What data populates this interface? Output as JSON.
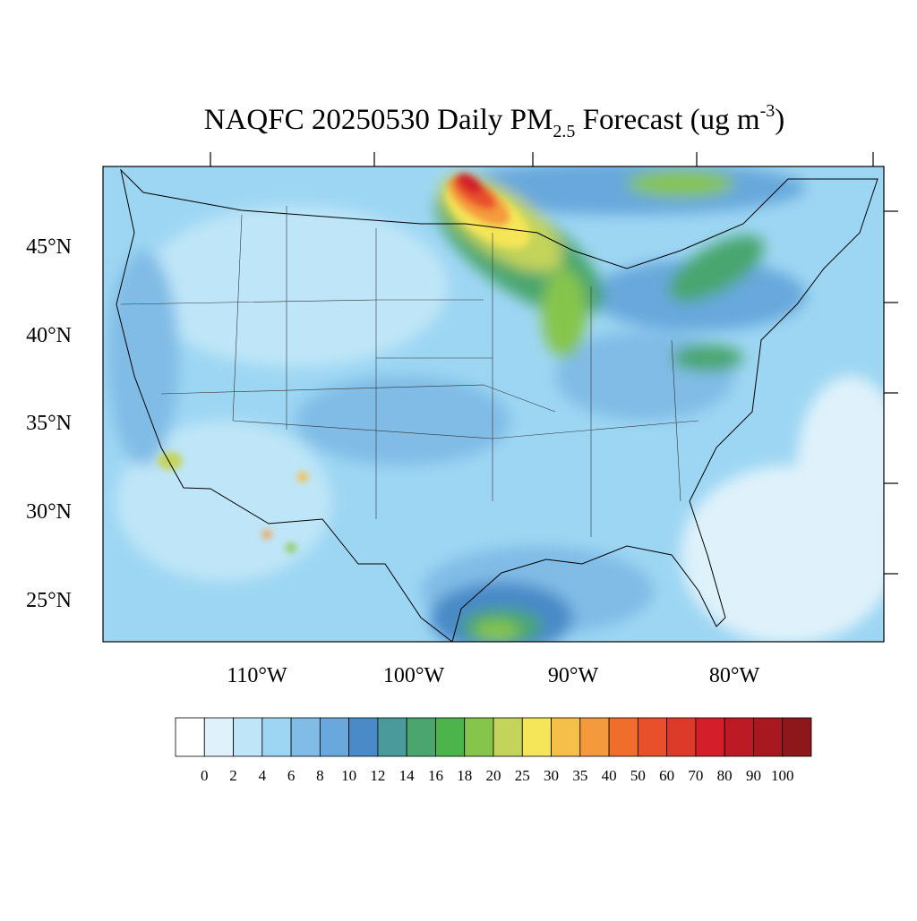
{
  "title": {
    "main": "NAQFC 20250530 Daily PM",
    "sub": "2.5",
    "rest": " Forecast (ug m",
    "sup": "-3",
    "end": ")"
  },
  "latitude_labels": [
    "45°N",
    "40°N",
    "35°N",
    "30°N",
    "25°N"
  ],
  "longitude_labels": [
    "110°W",
    "100°W",
    "90°W",
    "80°W"
  ],
  "colorbar": {
    "levels": [
      0,
      2,
      4,
      6,
      8,
      10,
      12,
      14,
      16,
      18,
      20,
      25,
      30,
      35,
      40,
      50,
      60,
      70,
      80,
      90,
      100
    ],
    "colors": [
      "#ffffff",
      "#dff2fb",
      "#bfe6f8",
      "#9dd6f3",
      "#80bce6",
      "#68a8dc",
      "#4a8ac8",
      "#4a9a9c",
      "#4aa66e",
      "#4cb44a",
      "#86c54c",
      "#c4d45a",
      "#f5e558",
      "#f6bf4a",
      "#f59a3c",
      "#f16d2c",
      "#e8502c",
      "#de3a2a",
      "#d41f2a",
      "#bc1a24",
      "#a8191f",
      "#8e171b"
    ]
  }
}
